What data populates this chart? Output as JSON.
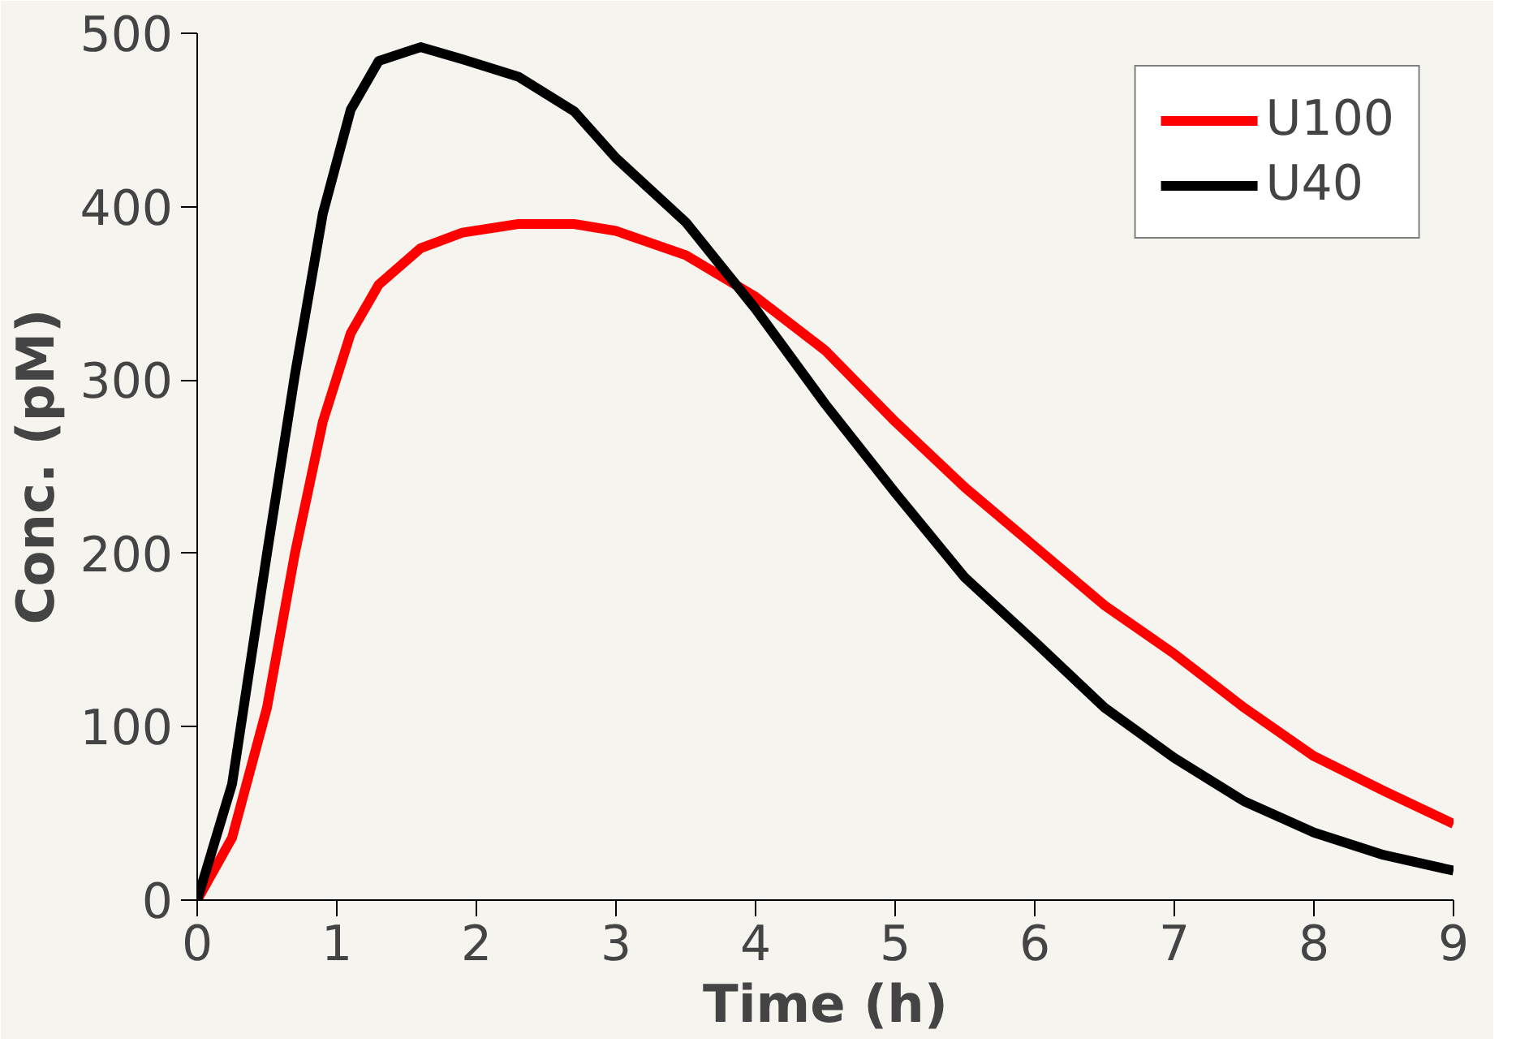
{
  "chart_data": {
    "type": "line",
    "xlabel": "Time (h)",
    "ylabel": "Conc. (pM)",
    "x": [
      0,
      0.25,
      0.5,
      0.7,
      0.9,
      1.1,
      1.3,
      1.6,
      1.9,
      2.3,
      2.7,
      3,
      3.5,
      4,
      4.5,
      5,
      5.5,
      6,
      6.5,
      7,
      7.5,
      8,
      8.5,
      9
    ],
    "series": [
      {
        "name": "U100",
        "color": "#ff0000",
        "values": [
          0,
          36,
          111,
          200,
          276,
          327,
          355,
          376,
          385,
          390,
          390,
          386,
          372,
          348,
          317,
          276,
          238,
          204,
          170,
          142,
          111,
          83,
          63,
          44
        ]
      },
      {
        "name": "U40",
        "color": "#000000",
        "values": [
          0,
          67,
          200,
          303,
          396,
          456,
          484,
          492,
          485,
          475,
          455,
          428,
          391,
          341,
          286,
          235,
          186,
          149,
          111,
          82,
          57,
          39,
          26,
          17
        ]
      }
    ],
    "xlim": [
      0,
      9
    ],
    "ylim": [
      0,
      500
    ],
    "xticks": [
      0,
      1,
      2,
      3,
      4,
      5,
      6,
      7,
      8,
      9
    ],
    "yticks": [
      0,
      100,
      200,
      300,
      400,
      500
    ],
    "grid": false,
    "legend": "top right",
    "marker": "none",
    "line_style": "solid"
  }
}
